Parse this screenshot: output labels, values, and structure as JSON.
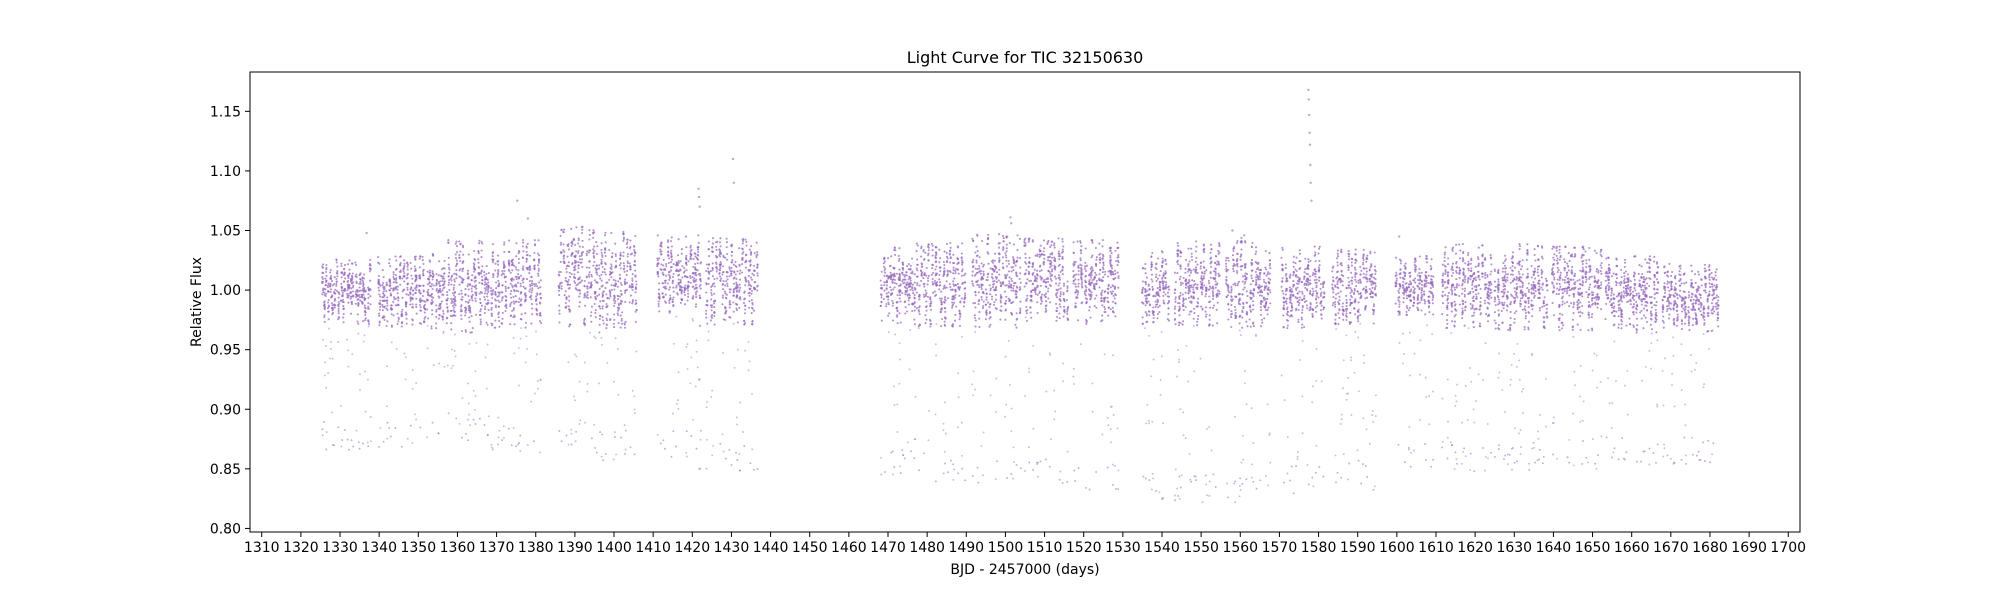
{
  "chart_data": {
    "type": "scatter",
    "title": "Light Curve for TIC 32150630",
    "xlabel": "BJD - 2457000 (days)",
    "ylabel": "Relative Flux",
    "xlim": [
      1307,
      1703
    ],
    "ylim": [
      0.797,
      1.183
    ],
    "xticks": [
      1310,
      1320,
      1330,
      1340,
      1350,
      1360,
      1370,
      1380,
      1390,
      1400,
      1410,
      1420,
      1430,
      1440,
      1450,
      1460,
      1470,
      1480,
      1490,
      1500,
      1510,
      1520,
      1530,
      1540,
      1550,
      1560,
      1570,
      1580,
      1590,
      1600,
      1610,
      1620,
      1630,
      1640,
      1650,
      1660,
      1670,
      1680,
      1690,
      1700
    ],
    "xtick_labels": [
      "1310",
      "1320",
      "1330",
      "1340",
      "1350",
      "1360",
      "1370",
      "1380",
      "1390",
      "1400",
      "1410",
      "1420",
      "1430",
      "1440",
      "1450",
      "1460",
      "1470",
      "1480",
      "1490",
      "1500",
      "1510",
      "1520",
      "1530",
      "1540",
      "1550",
      "1560",
      "1570",
      "1580",
      "1590",
      "1600",
      "1610",
      "1620",
      "1630",
      "1640",
      "1650",
      "1660",
      "1670",
      "1680",
      "1690",
      "1700"
    ],
    "yticks": [
      0.8,
      0.85,
      0.9,
      0.95,
      1.0,
      1.05,
      1.1,
      1.15
    ],
    "ytick_labels": [
      "0.80",
      "0.85",
      "0.90",
      "0.95",
      "1.00",
      "1.05",
      "1.10",
      "1.15"
    ],
    "grid": false,
    "color": "#9467bd",
    "series": [
      {
        "segments": [
          {
            "x": [
              1325.3,
              1338.0
            ],
            "core": [
              0.975,
              1.022
            ],
            "low": 0.866
          },
          {
            "x": [
              1339.6,
              1352.7
            ],
            "core": [
              0.973,
              1.025
            ],
            "low": 0.868
          },
          {
            "x": [
              1352.7,
              1367.3
            ],
            "core": [
              0.968,
              1.038
            ],
            "low": 0.873
          },
          {
            "x": [
              1367.3,
              1381.5
            ],
            "core": [
              0.972,
              1.038
            ],
            "low": 0.862
          },
          {
            "x": [
              1385.9,
              1396.6
            ],
            "core": [
              0.972,
              1.05
            ],
            "low": 0.862
          },
          {
            "x": [
              1396.6,
              1406.0
            ],
            "core": [
              0.972,
              1.045
            ],
            "low": 0.857
          },
          {
            "x": [
              1410.9,
              1422.5
            ],
            "core": [
              0.985,
              1.043
            ],
            "low": 0.86
          },
          {
            "x": [
              1423.5,
              1436.8
            ],
            "core": [
              0.975,
              1.04
            ],
            "low": 0.847
          },
          {
            "x": [
              1468.3,
              1477.3
            ],
            "core": [
              0.975,
              1.032
            ],
            "low": 0.842
          },
          {
            "x": [
              1477.4,
              1490.0
            ],
            "core": [
              0.973,
              1.036
            ],
            "low": 0.839
          },
          {
            "x": [
              1491.6,
              1504.0
            ],
            "core": [
              0.972,
              1.043
            ],
            "low": 0.833
          },
          {
            "x": [
              1504.7,
              1516.1
            ],
            "core": [
              0.978,
              1.04
            ],
            "low": 0.835
          },
          {
            "x": [
              1517.4,
              1529.1
            ],
            "core": [
              0.975,
              1.038
            ],
            "low": 0.829
          },
          {
            "x": [
              1535.0,
              1542.0
            ],
            "core": [
              0.975,
              1.032
            ],
            "low": 0.823
          },
          {
            "x": [
              1543.2,
              1555.0
            ],
            "core": [
              0.973,
              1.038
            ],
            "low": 0.822
          },
          {
            "x": [
              1556.4,
              1568.0
            ],
            "core": [
              0.972,
              1.04
            ],
            "low": 0.822
          },
          {
            "x": [
              1570.4,
              1581.5
            ],
            "core": [
              0.972,
              1.033
            ],
            "low": 0.828
          },
          {
            "x": [
              1583.5,
              1595.0
            ],
            "core": [
              0.975,
              1.03
            ],
            "low": 0.832
          },
          {
            "x": [
              1599.7,
              1609.5
            ],
            "core": [
              0.983,
              1.025
            ],
            "low": 0.848
          },
          {
            "x": [
              1611.5,
              1624.5
            ],
            "core": [
              0.972,
              1.035
            ],
            "low": 0.847
          },
          {
            "x": [
              1625.0,
              1638.5
            ],
            "core": [
              0.97,
              1.035
            ],
            "low": 0.848
          },
          {
            "x": [
              1639.5,
              1652.5
            ],
            "core": [
              0.97,
              1.033
            ],
            "low": 0.85
          },
          {
            "x": [
              1653.2,
              1667.0
            ],
            "core": [
              0.968,
              1.025
            ],
            "low": 0.853
          },
          {
            "x": [
              1667.8,
              1682.5
            ],
            "core": [
              0.968,
              1.02
            ],
            "low": 0.853
          }
        ],
        "outliers": [
          {
            "x": 1421.6,
            "y": 1.085
          },
          {
            "x": 1421.7,
            "y": 1.078
          },
          {
            "x": 1421.9,
            "y": 1.07
          },
          {
            "x": 1421.8,
            "y": 0.925
          },
          {
            "x": 1422.0,
            "y": 0.97
          },
          {
            "x": 1421.9,
            "y": 0.85
          },
          {
            "x": 1430.4,
            "y": 1.11
          },
          {
            "x": 1430.6,
            "y": 1.09
          },
          {
            "x": 1336.8,
            "y": 1.048
          },
          {
            "x": 1375.3,
            "y": 1.075
          },
          {
            "x": 1378.0,
            "y": 1.06
          },
          {
            "x": 1501.3,
            "y": 1.061
          },
          {
            "x": 1501.5,
            "y": 1.056
          },
          {
            "x": 1577.4,
            "y": 1.168
          },
          {
            "x": 1577.5,
            "y": 1.16
          },
          {
            "x": 1577.6,
            "y": 1.147
          },
          {
            "x": 1577.7,
            "y": 1.132
          },
          {
            "x": 1577.8,
            "y": 1.122
          },
          {
            "x": 1577.9,
            "y": 1.105
          },
          {
            "x": 1578.0,
            "y": 1.09
          },
          {
            "x": 1578.2,
            "y": 1.075
          },
          {
            "x": 1600.6,
            "y": 1.045
          },
          {
            "x": 1558.0,
            "y": 1.05
          },
          {
            "x": 1561.0,
            "y": 1.046
          }
        ]
      }
    ]
  }
}
